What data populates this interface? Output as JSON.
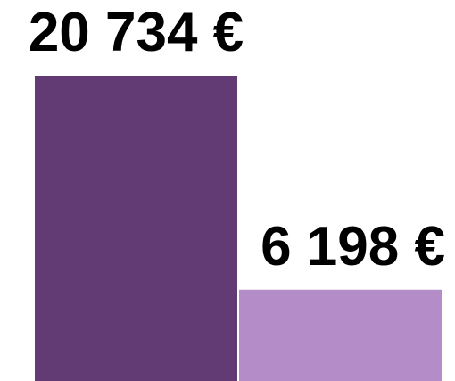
{
  "chart_data": {
    "type": "bar",
    "values": [
      20734,
      6198
    ],
    "value_labels": [
      "20 734 €",
      "6 198 €"
    ],
    "colors": [
      "#623a74",
      "#b48cc8"
    ]
  }
}
